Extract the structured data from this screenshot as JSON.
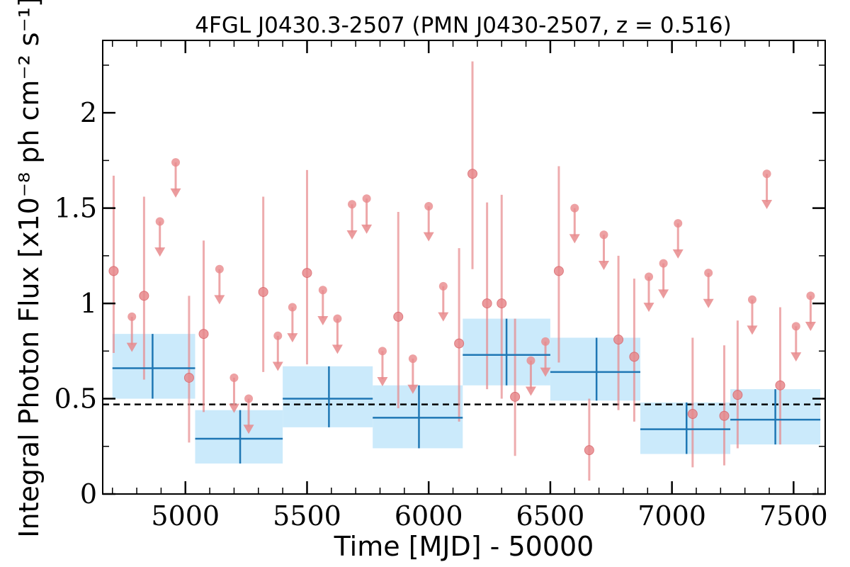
{
  "chart_data": {
    "type": "scatter",
    "title": "4FGL J0430.3-2507 (PMN J0430-2507, z = 0.516)",
    "xlabel": "Time [MJD] - 50000",
    "ylabel": "Integral Photon Flux [x10⁻⁸ ph cm⁻² s⁻¹]",
    "xlim": [
      4660,
      7630
    ],
    "ylim": [
      0,
      2.38
    ],
    "x_ticks": [
      5000,
      5500,
      6000,
      6500,
      7000,
      7500
    ],
    "x_tick_labels": [
      "5000",
      "5500",
      "6000",
      "6500",
      "7000",
      "7500"
    ],
    "y_ticks": [
      0,
      0.5,
      1,
      1.5,
      2
    ],
    "y_tick_labels": [
      "0",
      "0.5",
      "1",
      "1.5",
      "2"
    ],
    "y_minor_step": 0.25,
    "x_minor_step": 100,
    "reference_level": 0.47,
    "colors": {
      "short_bins": "#e8898c",
      "long_bins": "#1f77b4",
      "long_bin_band": "#cbeafb",
      "reference_line": "#000000"
    },
    "series": [
      {
        "values": [
          {
            "x": 4705,
            "y": 1.17,
            "ylo": 0.74,
            "yhi": 1.67
          },
          {
            "x": 4830,
            "y": 1.04,
            "ylo": 0.6,
            "yhi": 1.56
          },
          {
            "x": 5015,
            "y": 0.61,
            "ylo": 0.27,
            "yhi": 1.04
          },
          {
            "x": 5075,
            "y": 0.84,
            "ylo": 0.43,
            "yhi": 1.33
          },
          {
            "x": 5320,
            "y": 1.06,
            "ylo": 0.64,
            "yhi": 1.56
          },
          {
            "x": 5500,
            "y": 1.16,
            "ylo": 0.68,
            "yhi": 1.7
          },
          {
            "x": 5875,
            "y": 0.93,
            "ylo": 0.45,
            "yhi": 1.48
          },
          {
            "x": 6125,
            "y": 0.79,
            "ylo": 0.38,
            "yhi": 1.29
          },
          {
            "x": 6180,
            "y": 1.68,
            "ylo": 1.18,
            "yhi": 2.27
          },
          {
            "x": 6240,
            "y": 1.0,
            "ylo": 0.55,
            "yhi": 1.53
          },
          {
            "x": 6300,
            "y": 1.0,
            "ylo": 0.5,
            "yhi": 1.57
          },
          {
            "x": 6355,
            "y": 0.51,
            "ylo": 0.2,
            "yhi": 0.92
          },
          {
            "x": 6535,
            "y": 1.17,
            "ylo": 0.69,
            "yhi": 1.72
          },
          {
            "x": 6660,
            "y": 0.23,
            "ylo": 0.07,
            "yhi": 0.5
          },
          {
            "x": 6780,
            "y": 0.81,
            "ylo": 0.44,
            "yhi": 1.25
          },
          {
            "x": 6845,
            "y": 0.72,
            "ylo": 0.38,
            "yhi": 1.13
          },
          {
            "x": 7085,
            "y": 0.42,
            "ylo": 0.14,
            "yhi": 0.82
          },
          {
            "x": 7215,
            "y": 0.41,
            "ylo": 0.15,
            "yhi": 0.78
          },
          {
            "x": 7270,
            "y": 0.52,
            "ylo": 0.24,
            "yhi": 0.91
          },
          {
            "x": 7445,
            "y": 0.57,
            "ylo": 0.26,
            "yhi": 0.98
          }
        ]
      },
      {
        "values": [
          {
            "x": 4780,
            "y": 0.93
          },
          {
            "x": 4895,
            "y": 1.43
          },
          {
            "x": 4960,
            "y": 1.74
          },
          {
            "x": 5140,
            "y": 1.18
          },
          {
            "x": 5200,
            "y": 0.61
          },
          {
            "x": 5260,
            "y": 0.5
          },
          {
            "x": 5380,
            "y": 0.83
          },
          {
            "x": 5440,
            "y": 0.98
          },
          {
            "x": 5565,
            "y": 1.07
          },
          {
            "x": 5625,
            "y": 0.92
          },
          {
            "x": 5685,
            "y": 1.52
          },
          {
            "x": 5745,
            "y": 1.55
          },
          {
            "x": 5810,
            "y": 0.75
          },
          {
            "x": 5935,
            "y": 0.71
          },
          {
            "x": 6000,
            "y": 1.51
          },
          {
            "x": 6060,
            "y": 1.09
          },
          {
            "x": 6420,
            "y": 0.7
          },
          {
            "x": 6480,
            "y": 0.8
          },
          {
            "x": 6600,
            "y": 1.5
          },
          {
            "x": 6720,
            "y": 1.36
          },
          {
            "x": 6905,
            "y": 1.14
          },
          {
            "x": 6965,
            "y": 1.21
          },
          {
            "x": 7025,
            "y": 1.42
          },
          {
            "x": 7150,
            "y": 1.16
          },
          {
            "x": 7330,
            "y": 1.02
          },
          {
            "x": 7390,
            "y": 1.68
          },
          {
            "x": 7510,
            "y": 0.88
          },
          {
            "x": 7570,
            "y": 1.04
          }
        ]
      },
      {
        "values": [
          {
            "x": 4865,
            "xlo": 4700,
            "xhi": 5040,
            "y": 0.66,
            "ylo": 0.5,
            "yhi": 0.84
          },
          {
            "x": 5225,
            "xlo": 5040,
            "xhi": 5400,
            "y": 0.29,
            "ylo": 0.16,
            "yhi": 0.44
          },
          {
            "x": 5590,
            "xlo": 5400,
            "xhi": 5770,
            "y": 0.5,
            "ylo": 0.35,
            "yhi": 0.67
          },
          {
            "x": 5960,
            "xlo": 5770,
            "xhi": 6140,
            "y": 0.4,
            "ylo": 0.24,
            "yhi": 0.57
          },
          {
            "x": 6320,
            "xlo": 6140,
            "xhi": 6500,
            "y": 0.73,
            "ylo": 0.57,
            "yhi": 0.92
          },
          {
            "x": 6690,
            "xlo": 6500,
            "xhi": 6870,
            "y": 0.64,
            "ylo": 0.49,
            "yhi": 0.82
          },
          {
            "x": 7060,
            "xlo": 6870,
            "xhi": 7240,
            "y": 0.34,
            "ylo": 0.21,
            "yhi": 0.48
          },
          {
            "x": 7425,
            "xlo": 7240,
            "xhi": 7610,
            "y": 0.39,
            "ylo": 0.26,
            "yhi": 0.55
          }
        ]
      }
    ]
  }
}
